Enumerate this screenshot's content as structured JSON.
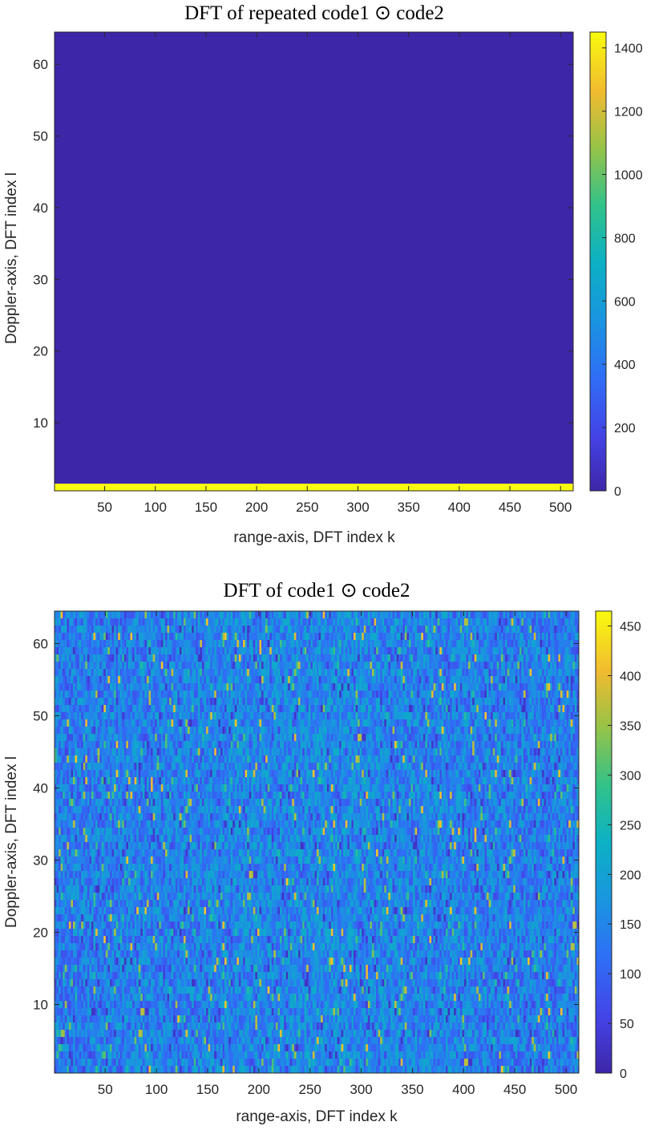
{
  "chart_data": [
    {
      "type": "heatmap",
      "title": "DFT of repeated code1 ⊙ code2",
      "xlabel": "range-axis, DFT index k",
      "ylabel": "Doppler-axis, DFT index l",
      "xlim": [
        1,
        512
      ],
      "ylim": [
        1,
        64
      ],
      "xticks": [
        50,
        100,
        150,
        200,
        250,
        300,
        350,
        400,
        450,
        500
      ],
      "yticks": [
        10,
        20,
        30,
        40,
        50,
        60
      ],
      "colorbar": {
        "min": 0,
        "max": 1450,
        "ticks": [
          0,
          200,
          400,
          600,
          800,
          1000,
          1200,
          1400
        ]
      },
      "colormap": "parula",
      "description_values": {
        "row_l_1_value": 1450,
        "other_rows_value": 0
      },
      "grid": false
    },
    {
      "type": "heatmap",
      "title": "DFT of code1 ⊙ code2",
      "xlabel": "range-axis, DFT index k",
      "ylabel": "Doppler-axis, DFT index l",
      "xlim": [
        1,
        512
      ],
      "ylim": [
        1,
        64
      ],
      "xticks": [
        50,
        100,
        150,
        200,
        250,
        300,
        350,
        400,
        450,
        500
      ],
      "yticks": [
        10,
        20,
        30,
        40,
        50,
        60
      ],
      "colorbar": {
        "min": 0,
        "max": 465,
        "ticks": [
          0,
          50,
          100,
          150,
          200,
          250,
          300,
          350,
          400,
          450
        ]
      },
      "colormap": "parula",
      "description_values": {
        "typical_value": 140,
        "typical_range": [
          20,
          420
        ]
      },
      "grid": false
    }
  ]
}
